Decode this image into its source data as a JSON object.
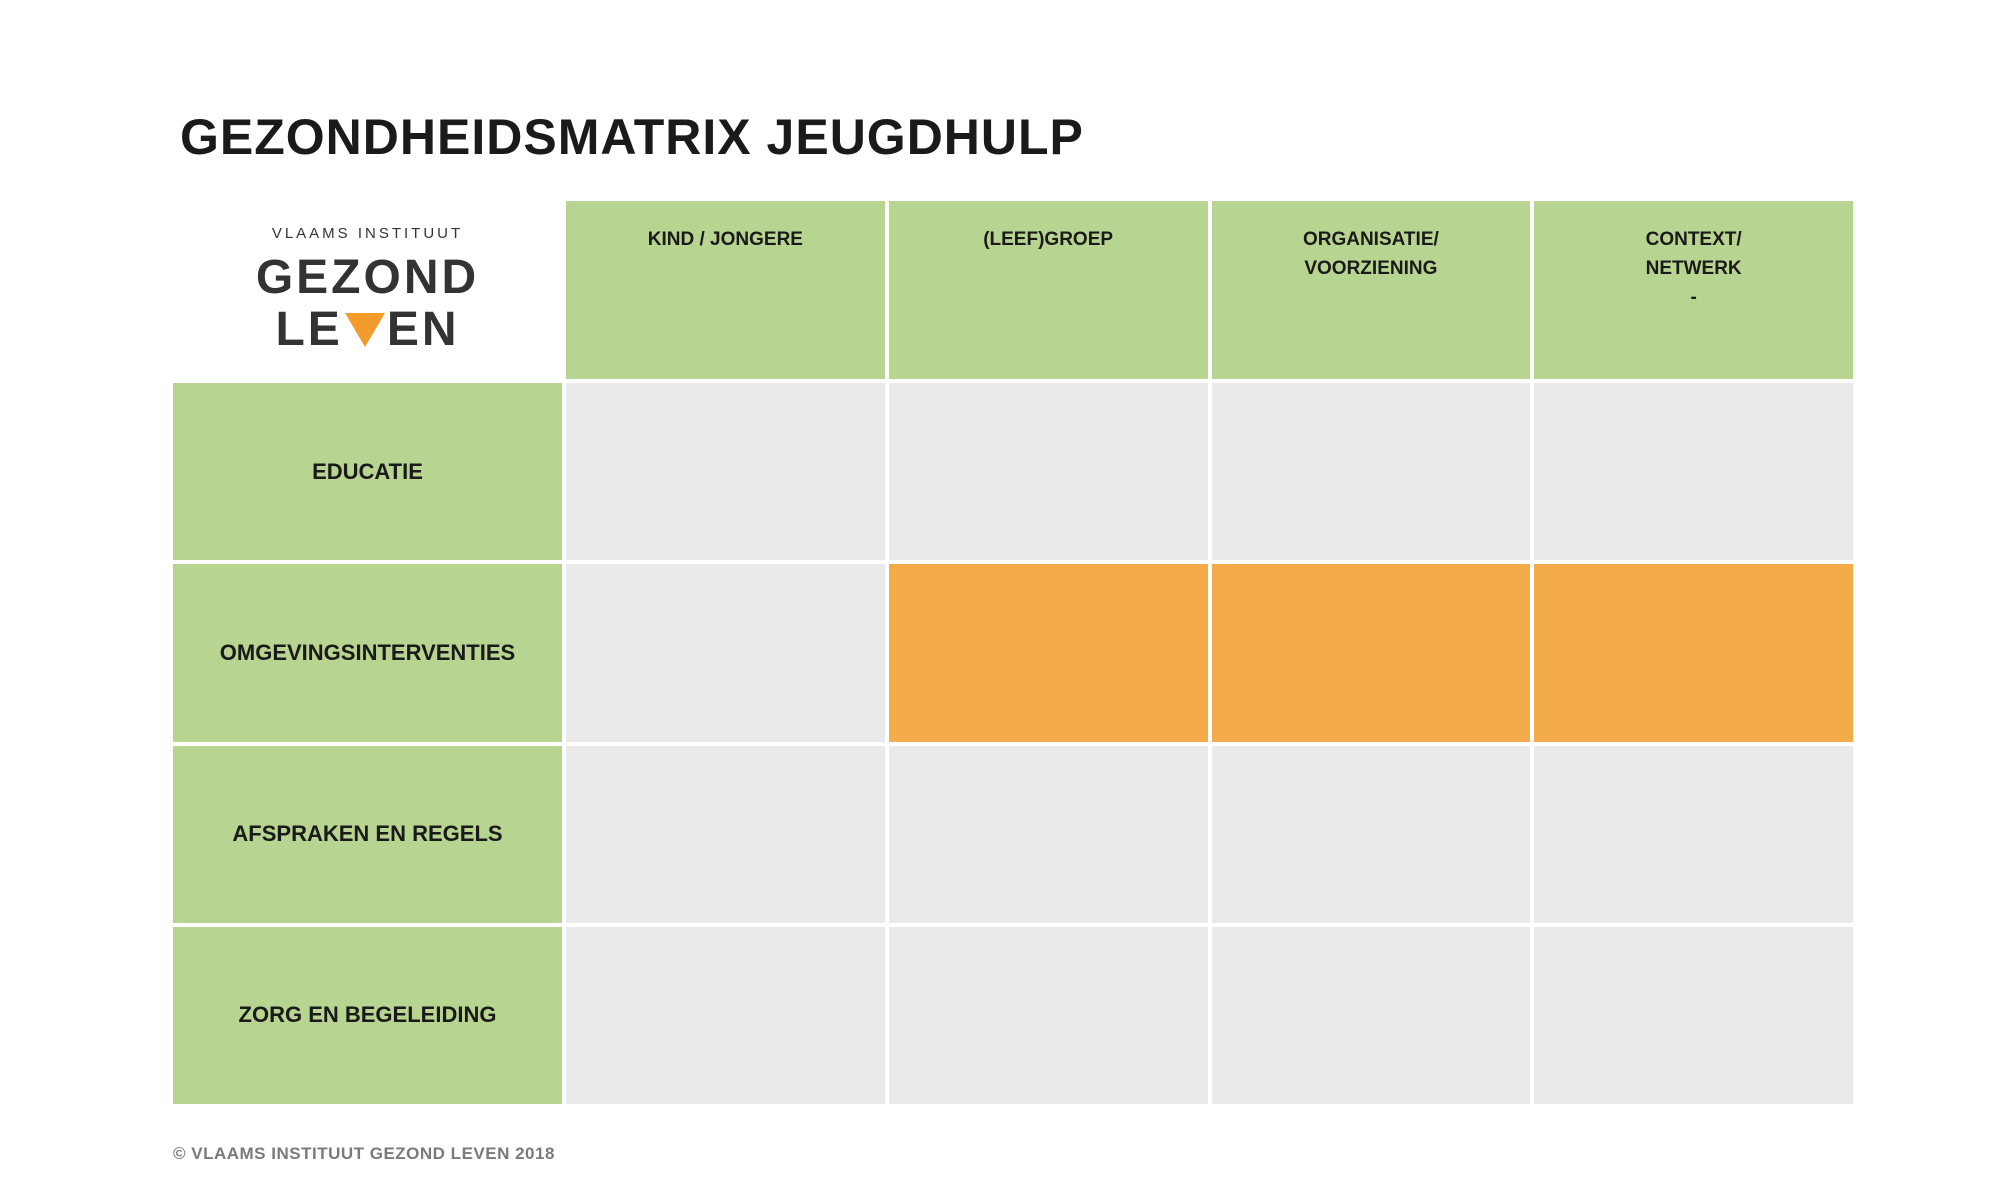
{
  "title": "GEZONDHEIDSMATRIX JEUGDHULP",
  "logo": {
    "top": "VLAAMS INSTITUUT",
    "line1": "GEZOND",
    "line2_left": "LE",
    "line2_right": "EN",
    "triangle_color": "#f39c2b"
  },
  "matrix": {
    "columns": [
      "KIND / JONGERE",
      "(LEEF)GROEP",
      "ORGANISATIE/\nVOORZIENING",
      "CONTEXT/\nNETWERK\n-"
    ],
    "rows": [
      "EDUCATIE",
      "OMGEVINGSINTERVENTIES",
      "AFSPRAKEN EN REGELS",
      "ZORG EN BEGELEIDING"
    ],
    "highlighted": [
      [
        false,
        false,
        false,
        false
      ],
      [
        false,
        true,
        true,
        true
      ],
      [
        false,
        false,
        false,
        false
      ],
      [
        false,
        false,
        false,
        false
      ]
    ]
  },
  "colors": {
    "header_green": "#b8d491",
    "cell_grey": "#eaeaea",
    "highlight_orange": "#f4ac4b"
  },
  "footer": "© VLAAMS INSTITUUT GEZOND LEVEN 2018"
}
